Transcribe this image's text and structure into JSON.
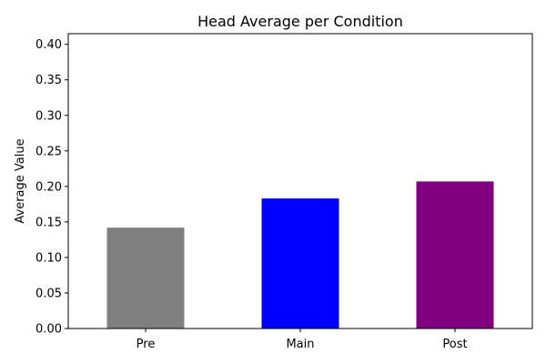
{
  "chart_data": {
    "type": "bar",
    "title": "Head Average per Condition",
    "xlabel": "",
    "ylabel": "Average Value",
    "categories": [
      "Pre",
      "Main",
      "Post"
    ],
    "values": [
      0.142,
      0.183,
      0.207
    ],
    "colors": [
      "#808080",
      "#0000ff",
      "#800080"
    ],
    "ylim": [
      0,
      0.415
    ],
    "yticks": [
      "0.00",
      "0.05",
      "0.10",
      "0.15",
      "0.20",
      "0.25",
      "0.30",
      "0.35",
      "0.40"
    ],
    "grid": false,
    "legend": "none"
  }
}
